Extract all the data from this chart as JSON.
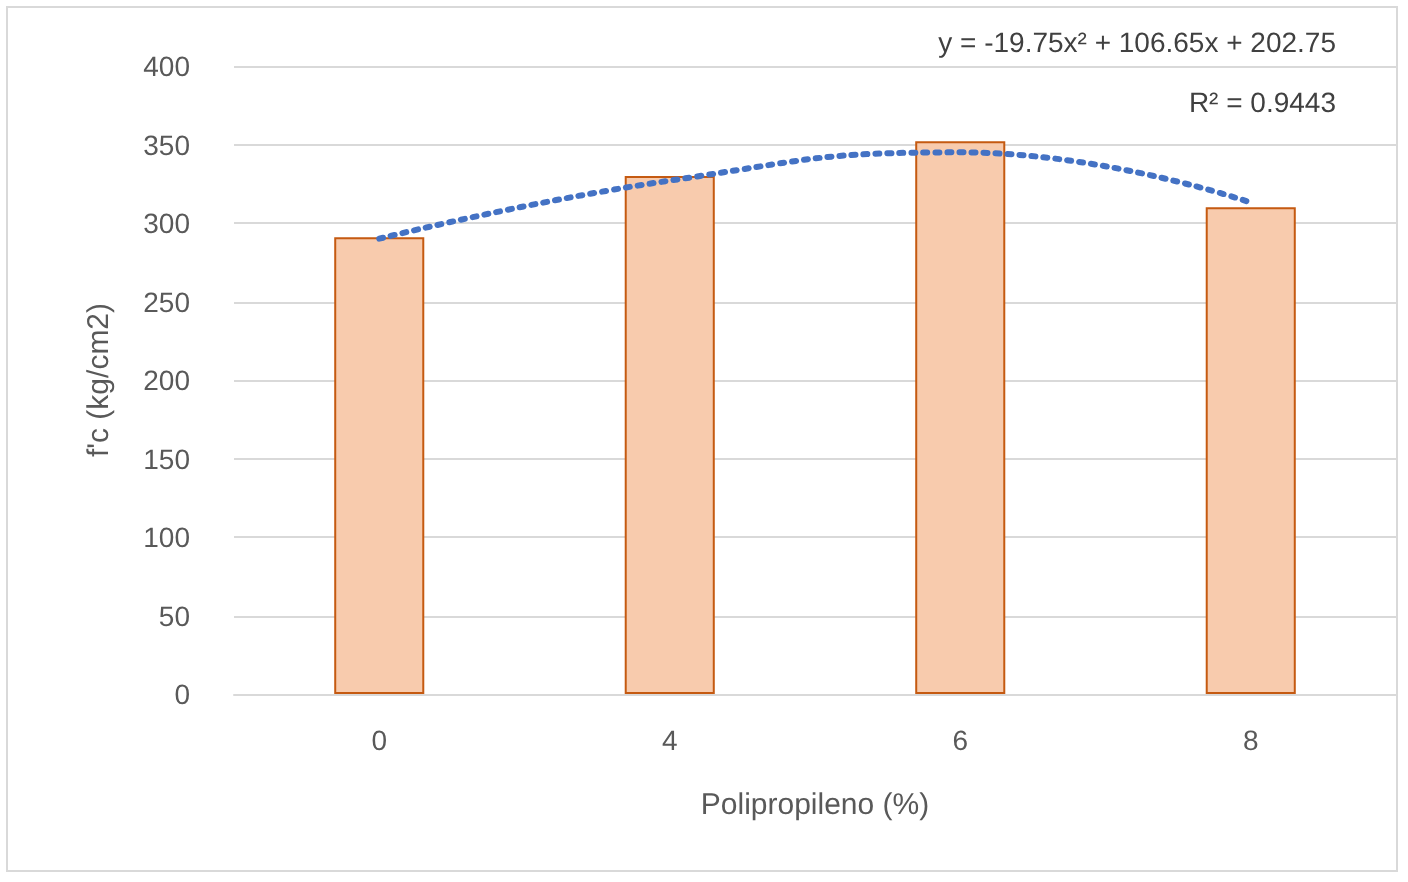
{
  "chart_data": {
    "type": "bar",
    "xlabel": "Polipropileno (%)",
    "ylabel": "f'c (kg/cm2)",
    "categories": [
      "0",
      "4",
      "6",
      "8"
    ],
    "series": [
      {
        "color": "#f8cbad",
        "values": [
          291,
          330,
          352,
          310
        ]
      },
      {
        "type": "line",
        "color": "#4472c4",
        "line_style": "dotted",
        "x": [
          "0",
          "4",
          "6",
          "8"
        ],
        "values": [
          290,
          327,
          345,
          313
        ]
      }
    ],
    "ylim": [
      0,
      400
    ],
    "yticks": [
      0,
      50,
      100,
      150,
      200,
      250,
      300,
      350,
      400
    ],
    "grid": "y",
    "marker": "none",
    "annotations": [
      "y = -19.75x² + 106.65x + 202.75",
      "R² = 0.9443"
    ]
  }
}
